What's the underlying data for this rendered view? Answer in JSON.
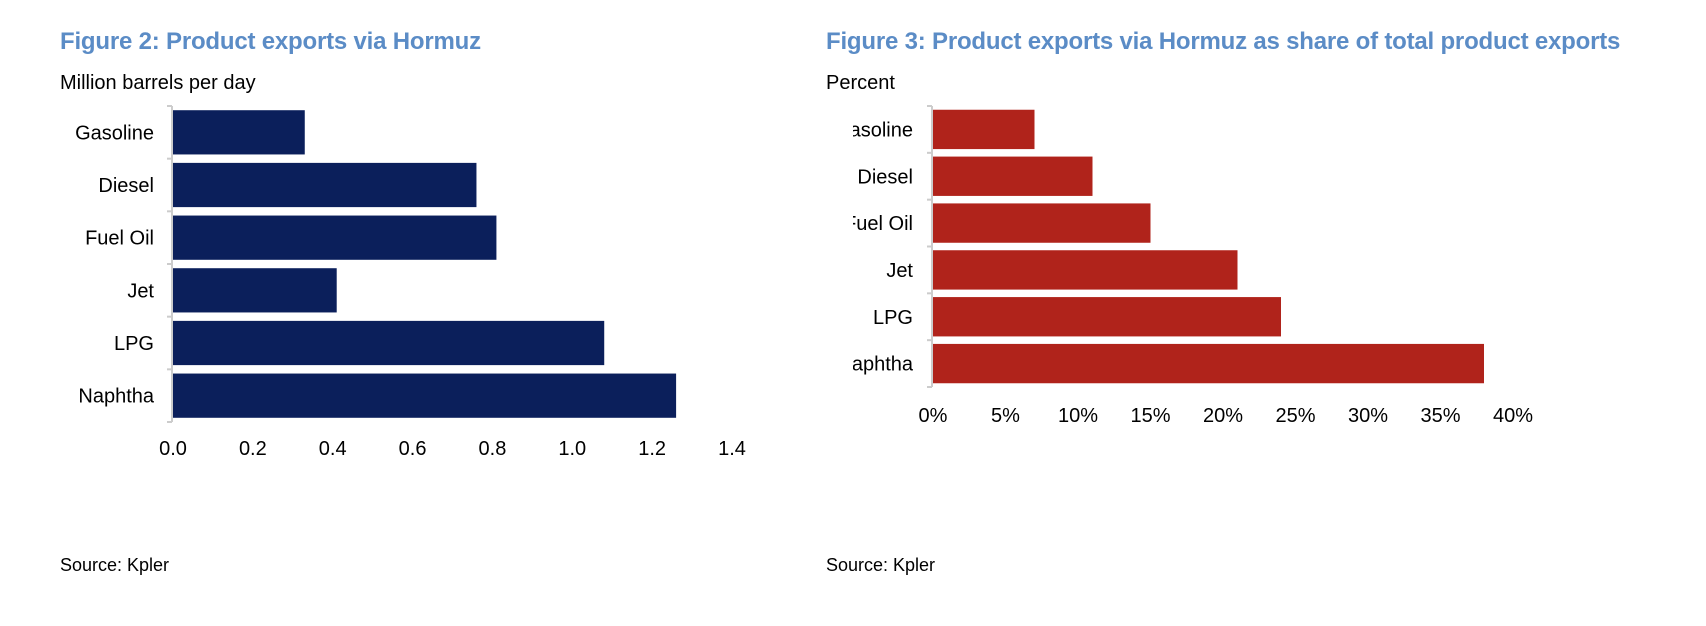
{
  "colors": {
    "title": "#5b8cc6",
    "navy_bar": "#0b1f5b",
    "red_bar": "#b0231b",
    "axis": "#cccccc"
  },
  "chart_data": [
    {
      "type": "bar",
      "orientation": "horizontal",
      "title": "Figure 2: Product exports via Hormuz",
      "ylabel": "Million barrels per day",
      "source": "Source: Kpler",
      "categories": [
        "Gasoline",
        "Diesel",
        "Fuel Oil",
        "Jet",
        "LPG",
        "Naphtha"
      ],
      "values": [
        0.33,
        0.76,
        0.81,
        0.41,
        1.08,
        1.26
      ],
      "xlim": [
        0,
        1.4
      ],
      "ticks": [
        0.0,
        0.2,
        0.4,
        0.6,
        0.8,
        1.0,
        1.2,
        1.4
      ],
      "tick_labels": [
        "0.0",
        "0.2",
        "0.4",
        "0.6",
        "0.8",
        "1.0",
        "1.2",
        "1.4"
      ],
      "grid": false
    },
    {
      "type": "bar",
      "orientation": "horizontal",
      "title": "Figure 3: Product exports via Hormuz as share of total product exports",
      "ylabel": "Percent",
      "source": "Source: Kpler",
      "categories": [
        "Gasoline",
        "Diesel",
        "Fuel Oil",
        "Jet",
        "LPG",
        "Naphtha"
      ],
      "values": [
        7,
        11,
        15,
        21,
        24,
        38
      ],
      "xlim": [
        0,
        40
      ],
      "ticks": [
        0,
        5,
        10,
        15,
        20,
        25,
        30,
        35,
        40
      ],
      "tick_labels": [
        "0%",
        "5%",
        "10%",
        "15%",
        "20%",
        "25%",
        "30%",
        "35%",
        "40%"
      ],
      "grid": false
    }
  ]
}
